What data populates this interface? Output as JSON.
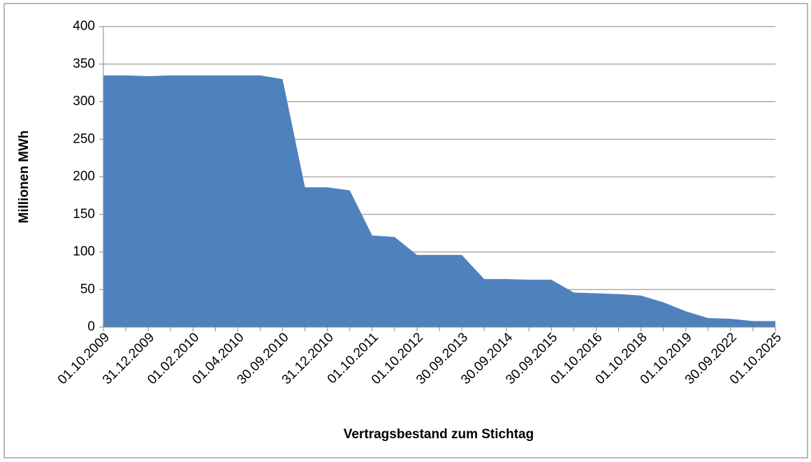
{
  "chart_data": {
    "type": "area",
    "xlabel": "Vertragsbestand zum Stichtag",
    "ylabel": "Millionen MWh",
    "categories": [
      "01.10.2009",
      null,
      "31.12.2009",
      null,
      "01.02.2010",
      null,
      "01.04.2010",
      null,
      "30.09.2010",
      null,
      "31.12.2010",
      null,
      "01.10.2011",
      null,
      "01.10.2012",
      null,
      "30.09.2013",
      null,
      "30.09.2014",
      null,
      "30.09.2015",
      null,
      "01.10.2016",
      null,
      "01.10.2018",
      null,
      "01.10.2019",
      null,
      "30.09.2022",
      null,
      "01.10.2025"
    ],
    "values": [
      335,
      335,
      334,
      335,
      335,
      335,
      335,
      335,
      330,
      186,
      186,
      182,
      122,
      120,
      96,
      96,
      96,
      64,
      64,
      63,
      63,
      46,
      45,
      44,
      42,
      33,
      21,
      12,
      11,
      8,
      8
    ],
    "color": "#4f81bd",
    "ylim": [
      0,
      400
    ],
    "yticks": [
      0,
      50,
      100,
      150,
      200,
      250,
      300,
      350,
      400
    ],
    "grid": true
  }
}
